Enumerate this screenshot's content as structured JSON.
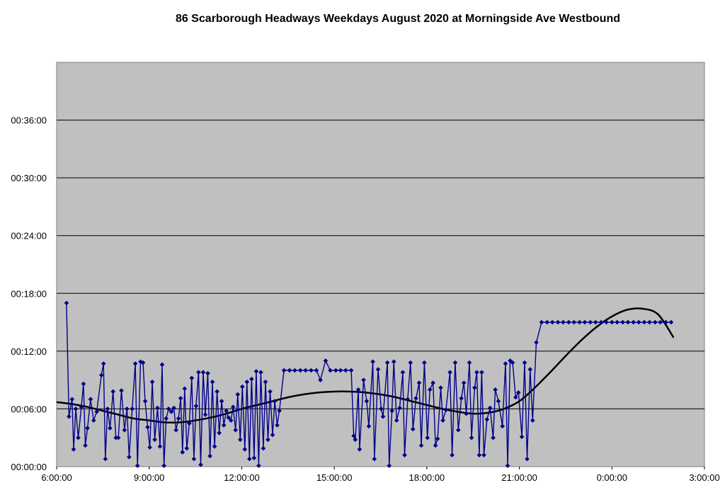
{
  "chart_data": {
    "type": "line",
    "title": "86 Scarborough Headways Weekdays August 2020 at Morningside Ave Westbound",
    "xlabel": "",
    "ylabel": "",
    "x_ticks": [
      "6:00:00",
      "9:00:00",
      "12:00:00",
      "15:00:00",
      "18:00:00",
      "21:00:00",
      "0:00:00",
      "3:00:00"
    ],
    "y_ticks": [
      "00:00:00",
      "00:06:00",
      "00:12:00",
      "00:18:00",
      "00:24:00",
      "00:30:00",
      "00:36:00"
    ],
    "xlim_hours": [
      6,
      27
    ],
    "ylim_minutes": [
      0,
      42
    ],
    "grid": "horizontal",
    "legend": "none",
    "colors": {
      "series": "#00008b",
      "trend": "#000000",
      "plot_bg": "#c0c0c0"
    },
    "series": [
      {
        "type": "line-with-diamond-markers",
        "points": [
          [
            6.32,
            17.0
          ],
          [
            6.4,
            5.2
          ],
          [
            6.5,
            7.0
          ],
          [
            6.55,
            1.8
          ],
          [
            6.62,
            6.0
          ],
          [
            6.7,
            3.0
          ],
          [
            6.8,
            6.2
          ],
          [
            6.87,
            8.6
          ],
          [
            6.93,
            2.2
          ],
          [
            7.0,
            4.0
          ],
          [
            7.1,
            7.0
          ],
          [
            7.2,
            4.8
          ],
          [
            7.3,
            5.7
          ],
          [
            7.45,
            9.5
          ],
          [
            7.52,
            10.7
          ],
          [
            7.58,
            0.8
          ],
          [
            7.65,
            6.0
          ],
          [
            7.73,
            4.0
          ],
          [
            7.83,
            7.8
          ],
          [
            7.92,
            3.0
          ],
          [
            8.0,
            3.0
          ],
          [
            8.1,
            7.9
          ],
          [
            8.2,
            3.8
          ],
          [
            8.28,
            6.0
          ],
          [
            8.35,
            1.0
          ],
          [
            8.45,
            6.0
          ],
          [
            8.55,
            10.7
          ],
          [
            8.62,
            0.1
          ],
          [
            8.72,
            10.9
          ],
          [
            8.8,
            10.8
          ],
          [
            8.87,
            6.8
          ],
          [
            8.95,
            4.1
          ],
          [
            9.02,
            2.0
          ],
          [
            9.1,
            8.8
          ],
          [
            9.18,
            2.8
          ],
          [
            9.27,
            6.1
          ],
          [
            9.35,
            2.1
          ],
          [
            9.42,
            10.6
          ],
          [
            9.48,
            0.1
          ],
          [
            9.55,
            5.0
          ],
          [
            9.63,
            6.0
          ],
          [
            9.72,
            5.7
          ],
          [
            9.8,
            6.1
          ],
          [
            9.87,
            3.8
          ],
          [
            9.95,
            5.0
          ],
          [
            10.02,
            7.1
          ],
          [
            10.08,
            1.5
          ],
          [
            10.15,
            8.1
          ],
          [
            10.22,
            1.9
          ],
          [
            10.3,
            4.5
          ],
          [
            10.38,
            9.2
          ],
          [
            10.45,
            0.8
          ],
          [
            10.52,
            6.3
          ],
          [
            10.6,
            9.8
          ],
          [
            10.67,
            0.2
          ],
          [
            10.75,
            9.8
          ],
          [
            10.82,
            5.4
          ],
          [
            10.9,
            9.7
          ],
          [
            10.97,
            1.1
          ],
          [
            11.05,
            8.8
          ],
          [
            11.12,
            2.1
          ],
          [
            11.2,
            7.8
          ],
          [
            11.27,
            3.5
          ],
          [
            11.35,
            6.8
          ],
          [
            11.42,
            4.3
          ],
          [
            11.5,
            5.8
          ],
          [
            11.57,
            5.1
          ],
          [
            11.65,
            4.8
          ],
          [
            11.72,
            6.2
          ],
          [
            11.8,
            3.8
          ],
          [
            11.87,
            7.5
          ],
          [
            11.95,
            2.8
          ],
          [
            12.02,
            8.3
          ],
          [
            12.1,
            1.8
          ],
          [
            12.17,
            8.8
          ],
          [
            12.25,
            0.8
          ],
          [
            12.32,
            9.1
          ],
          [
            12.4,
            0.9
          ],
          [
            12.47,
            9.9
          ],
          [
            12.55,
            0.1
          ],
          [
            12.62,
            9.8
          ],
          [
            12.7,
            1.9
          ],
          [
            12.77,
            8.8
          ],
          [
            12.85,
            2.8
          ],
          [
            12.92,
            7.8
          ],
          [
            13.0,
            3.3
          ],
          [
            13.07,
            6.8
          ],
          [
            13.15,
            4.3
          ],
          [
            13.22,
            5.8
          ],
          [
            13.37,
            10.0
          ],
          [
            13.55,
            10.0
          ],
          [
            13.72,
            10.0
          ],
          [
            13.9,
            10.0
          ],
          [
            14.07,
            10.0
          ],
          [
            14.25,
            10.0
          ],
          [
            14.42,
            10.0
          ],
          [
            14.55,
            9.0
          ],
          [
            14.72,
            11.0
          ],
          [
            14.87,
            10.0
          ],
          [
            15.05,
            10.0
          ],
          [
            15.2,
            10.0
          ],
          [
            15.37,
            10.0
          ],
          [
            15.55,
            10.0
          ],
          [
            15.63,
            3.2
          ],
          [
            15.68,
            2.8
          ],
          [
            15.78,
            8.0
          ],
          [
            15.82,
            1.8
          ],
          [
            15.95,
            9.0
          ],
          [
            16.05,
            6.8
          ],
          [
            16.12,
            4.2
          ],
          [
            16.25,
            10.9
          ],
          [
            16.3,
            0.8
          ],
          [
            16.42,
            10.1
          ],
          [
            16.52,
            6.0
          ],
          [
            16.58,
            5.2
          ],
          [
            16.72,
            10.8
          ],
          [
            16.78,
            0.1
          ],
          [
            16.87,
            5.8
          ],
          [
            16.93,
            10.9
          ],
          [
            17.02,
            4.8
          ],
          [
            17.12,
            6.1
          ],
          [
            17.22,
            9.8
          ],
          [
            17.28,
            1.2
          ],
          [
            17.38,
            7.0
          ],
          [
            17.47,
            10.8
          ],
          [
            17.55,
            3.9
          ],
          [
            17.65,
            7.1
          ],
          [
            17.75,
            8.7
          ],
          [
            17.82,
            2.2
          ],
          [
            17.92,
            10.8
          ],
          [
            18.02,
            3.0
          ],
          [
            18.1,
            8.0
          ],
          [
            18.2,
            8.7
          ],
          [
            18.28,
            2.2
          ],
          [
            18.35,
            2.9
          ],
          [
            18.45,
            8.2
          ],
          [
            18.52,
            4.8
          ],
          [
            18.62,
            5.9
          ],
          [
            18.75,
            9.8
          ],
          [
            18.82,
            1.2
          ],
          [
            18.92,
            10.8
          ],
          [
            19.02,
            3.8
          ],
          [
            19.12,
            7.1
          ],
          [
            19.2,
            8.7
          ],
          [
            19.28,
            5.5
          ],
          [
            19.38,
            10.8
          ],
          [
            19.45,
            3.0
          ],
          [
            19.55,
            8.2
          ],
          [
            19.62,
            9.8
          ],
          [
            19.7,
            1.2
          ],
          [
            19.78,
            9.8
          ],
          [
            19.85,
            1.2
          ],
          [
            19.95,
            4.9
          ],
          [
            20.05,
            6.1
          ],
          [
            20.15,
            3.0
          ],
          [
            20.22,
            8.0
          ],
          [
            20.32,
            6.8
          ],
          [
            20.45,
            4.2
          ],
          [
            20.55,
            10.7
          ],
          [
            20.62,
            0.1
          ],
          [
            20.7,
            11.0
          ],
          [
            20.78,
            10.8
          ],
          [
            20.88,
            7.2
          ],
          [
            20.97,
            7.7
          ],
          [
            21.08,
            3.1
          ],
          [
            21.17,
            10.8
          ],
          [
            21.25,
            0.8
          ],
          [
            21.35,
            10.1
          ],
          [
            21.43,
            4.8
          ],
          [
            21.55,
            12.9
          ],
          [
            21.72,
            15.0
          ],
          [
            21.9,
            15.0
          ],
          [
            22.07,
            15.0
          ],
          [
            22.25,
            15.0
          ],
          [
            22.42,
            15.0
          ],
          [
            22.6,
            15.0
          ],
          [
            22.77,
            15.0
          ],
          [
            22.95,
            15.0
          ],
          [
            23.12,
            15.0
          ],
          [
            23.3,
            15.0
          ],
          [
            23.47,
            15.0
          ],
          [
            23.65,
            15.0
          ],
          [
            23.82,
            15.0
          ],
          [
            24.0,
            15.0
          ],
          [
            24.17,
            15.0
          ],
          [
            24.35,
            15.0
          ],
          [
            24.52,
            15.0
          ],
          [
            24.7,
            15.0
          ],
          [
            24.87,
            15.0
          ],
          [
            25.05,
            15.0
          ],
          [
            25.22,
            15.0
          ],
          [
            25.4,
            15.0
          ],
          [
            25.57,
            15.0
          ],
          [
            25.75,
            15.0
          ],
          [
            25.92,
            15.0
          ]
        ]
      },
      {
        "type": "polynomial-trendline",
        "points": [
          [
            6.0,
            6.7
          ],
          [
            6.5,
            6.5
          ],
          [
            7.0,
            6.2
          ],
          [
            7.5,
            5.8
          ],
          [
            8.0,
            5.4
          ],
          [
            8.5,
            5.0
          ],
          [
            9.0,
            4.8
          ],
          [
            9.5,
            4.6
          ],
          [
            10.0,
            4.6
          ],
          [
            10.5,
            4.8
          ],
          [
            11.0,
            5.1
          ],
          [
            11.5,
            5.5
          ],
          [
            12.0,
            6.0
          ],
          [
            12.5,
            6.4
          ],
          [
            13.0,
            6.8
          ],
          [
            13.5,
            7.2
          ],
          [
            14.0,
            7.5
          ],
          [
            14.5,
            7.7
          ],
          [
            15.0,
            7.8
          ],
          [
            15.5,
            7.8
          ],
          [
            16.0,
            7.7
          ],
          [
            16.5,
            7.5
          ],
          [
            17.0,
            7.2
          ],
          [
            17.5,
            6.8
          ],
          [
            18.0,
            6.4
          ],
          [
            18.5,
            6.0
          ],
          [
            19.0,
            5.7
          ],
          [
            19.5,
            5.5
          ],
          [
            20.0,
            5.6
          ],
          [
            20.5,
            6.0
          ],
          [
            21.0,
            6.8
          ],
          [
            21.5,
            8.2
          ],
          [
            22.0,
            9.8
          ],
          [
            22.5,
            11.5
          ],
          [
            23.0,
            13.1
          ],
          [
            23.5,
            14.5
          ],
          [
            24.0,
            15.6
          ],
          [
            24.5,
            16.3
          ],
          [
            25.0,
            16.4
          ],
          [
            25.5,
            15.8
          ],
          [
            26.0,
            13.4
          ]
        ]
      }
    ]
  }
}
